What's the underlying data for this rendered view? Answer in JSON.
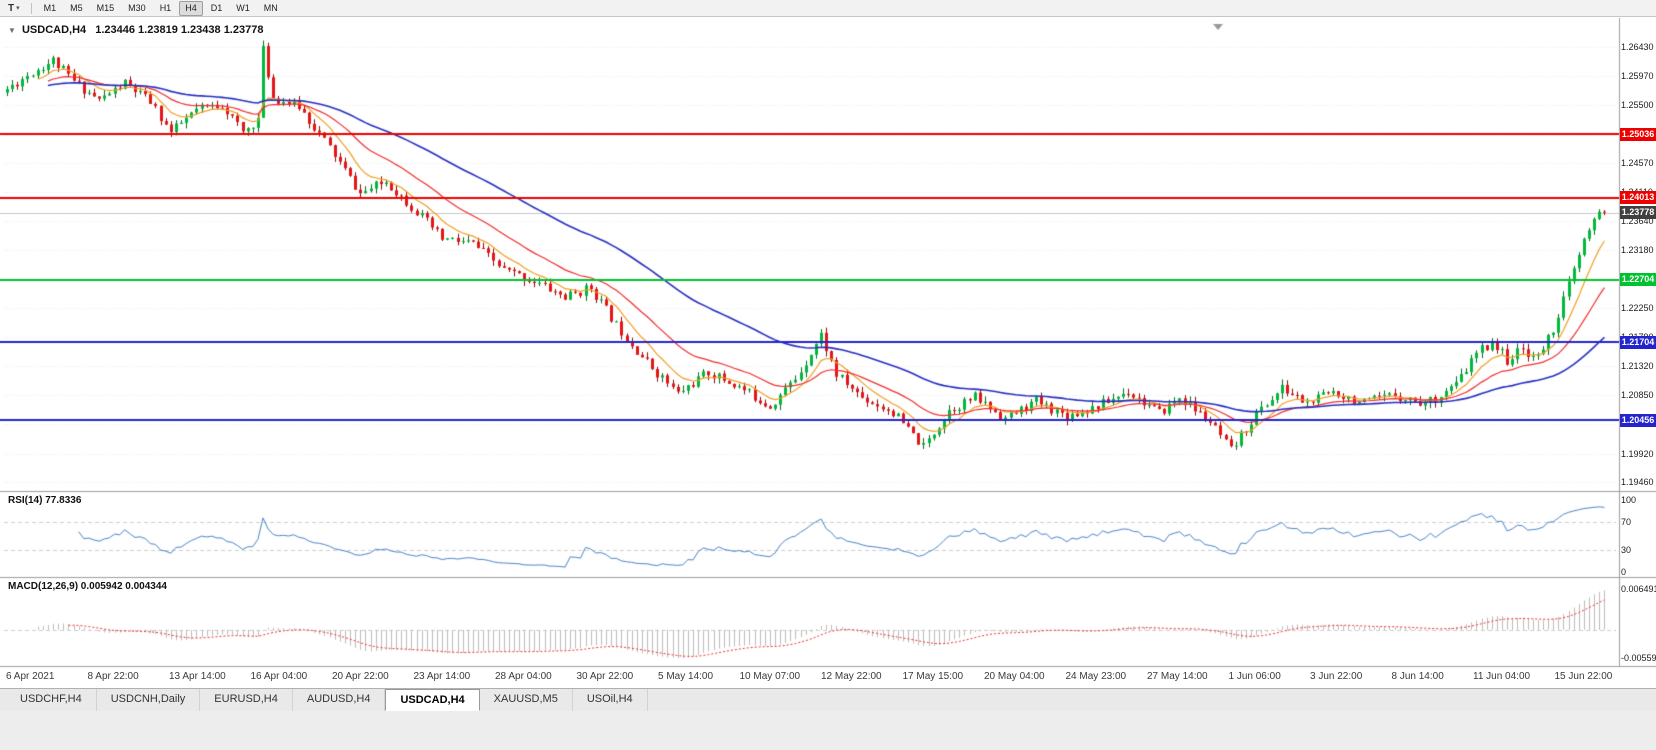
{
  "toolbar": {
    "template_button": "T",
    "caret_icon": "▾",
    "timeframes": [
      "M1",
      "M5",
      "M15",
      "M30",
      "H1",
      "H4",
      "D1",
      "W1",
      "MN"
    ],
    "active_timeframe": "H4"
  },
  "title": {
    "collapse_icon": "▼",
    "symbol": "USDCAD,H4",
    "ohlc": "1.23446 1.23819 1.23438 1.23778"
  },
  "rsi_panel": {
    "label": "RSI(14) 77.8336",
    "value": 77.8336,
    "scale": [
      "100",
      "70",
      "30",
      "0"
    ]
  },
  "macd_panel": {
    "label": "MACD(12,26,9) 0.005942 0.004344",
    "macd_value": 0.005942,
    "signal_value": 0.004344,
    "scale_top": "0.006491",
    "scale_bottom": "-0.005593"
  },
  "tabs": {
    "items": [
      "USDCHF,H4",
      "USDCNH,Daily",
      "EURUSD,H4",
      "AUDUSD,H4",
      "USDCAD,H4",
      "XAUUSD,M5",
      "USOil,H4"
    ],
    "active": "USDCAD,H4"
  },
  "colors": {
    "up_candle": "#00b93c",
    "up_wick": "#0c6b22",
    "down_candle": "#e51515",
    "down_wick": "#8f0d0d",
    "ma_fast": "#f0a028",
    "ma_mid": "#f03030",
    "ma_slow": "#2830c0",
    "rsi_line": "#4a86c8",
    "macd_hist": "#bdbdbd",
    "macd_signal": "#f03030",
    "current_price_tag": "#3f3f3f",
    "resistance_line": "#ee0000",
    "support_green": "#00c22e",
    "support_blue": "#2424cc"
  },
  "chart_data": {
    "type": "candlestick",
    "symbol": "USDCAD",
    "timeframe": "H4",
    "current_price": 1.23778,
    "current_price_label": "1.23778",
    "ohlc_current": {
      "open": 1.23446,
      "high": 1.23819,
      "low": 1.23438,
      "close": 1.23778
    },
    "price_range": {
      "max": 1.268,
      "min": 1.194
    },
    "candle_count": 313,
    "price_ticks": [
      "1.26430",
      "1.25970",
      "1.25500",
      "1.25030",
      "1.24570",
      "1.24110",
      "1.23640",
      "1.23180",
      "1.22710",
      "1.22250",
      "1.21790",
      "1.21320",
      "1.20850",
      "1.20390",
      "1.19920",
      "1.19460"
    ],
    "x_labels": [
      "6 Apr 2021",
      "8 Apr 22:00",
      "13 Apr 14:00",
      "16 Apr 04:00",
      "20 Apr 22:00",
      "23 Apr 14:00",
      "28 Apr 04:00",
      "30 Apr 22:00",
      "5 May 14:00",
      "10 May 07:00",
      "12 May 22:00",
      "17 May 15:00",
      "20 May 04:00",
      "24 May 23:00",
      "27 May 14:00",
      "1 Jun 06:00",
      "3 Jun 22:00",
      "8 Jun 14:00",
      "11 Jun 04:00",
      "15 Jun 22:00"
    ],
    "hlines": [
      {
        "price": 1.25036,
        "label": "1.25036",
        "color": "#ee0000"
      },
      {
        "price": 1.24013,
        "label": "1.24013",
        "color": "#ee0000"
      },
      {
        "price": 1.22704,
        "label": "1.22704",
        "color": "#00c22e"
      },
      {
        "price": 1.21704,
        "label": "1.21704",
        "color": "#2424cc"
      },
      {
        "price": 1.20456,
        "label": "1.20456",
        "color": "#2424cc"
      }
    ],
    "anchors": [
      [
        0,
        1.257
      ],
      [
        5,
        1.2598
      ],
      [
        10,
        1.2622
      ],
      [
        14,
        1.2588
      ],
      [
        19,
        1.2558
      ],
      [
        24,
        1.2585
      ],
      [
        29,
        1.2555
      ],
      [
        33,
        1.2506
      ],
      [
        38,
        1.2542
      ],
      [
        43,
        1.2552
      ],
      [
        47,
        1.2506
      ],
      [
        50,
        1.2528
      ],
      [
        51,
        1.2638
      ],
      [
        53,
        1.2562
      ],
      [
        58,
        1.2548
      ],
      [
        64,
        1.2482
      ],
      [
        70,
        1.2408
      ],
      [
        75,
        1.2428
      ],
      [
        80,
        1.2388
      ],
      [
        86,
        1.2336
      ],
      [
        92,
        1.2328
      ],
      [
        98,
        1.2286
      ],
      [
        104,
        1.2268
      ],
      [
        110,
        1.2242
      ],
      [
        115,
        1.2258
      ],
      [
        120,
        1.2198
      ],
      [
        126,
        1.2138
      ],
      [
        132,
        1.2088
      ],
      [
        138,
        1.2122
      ],
      [
        144,
        1.2098
      ],
      [
        150,
        1.2068
      ],
      [
        155,
        1.2112
      ],
      [
        160,
        1.2182
      ],
      [
        163,
        1.2118
      ],
      [
        168,
        1.2082
      ],
      [
        174,
        1.2058
      ],
      [
        180,
        1.2002
      ],
      [
        185,
        1.2062
      ],
      [
        190,
        1.2082
      ],
      [
        196,
        1.2048
      ],
      [
        202,
        1.2076
      ],
      [
        208,
        1.2052
      ],
      [
        214,
        1.2068
      ],
      [
        220,
        1.2092
      ],
      [
        226,
        1.2056
      ],
      [
        230,
        1.2082
      ],
      [
        236,
        1.2042
      ],
      [
        240,
        1.1996
      ],
      [
        245,
        1.2056
      ],
      [
        250,
        1.2096
      ],
      [
        255,
        1.2072
      ],
      [
        260,
        1.2092
      ],
      [
        266,
        1.2072
      ],
      [
        272,
        1.2086
      ],
      [
        278,
        1.2072
      ],
      [
        284,
        1.2102
      ],
      [
        288,
        1.2152
      ],
      [
        291,
        1.2172
      ],
      [
        294,
        1.2142
      ],
      [
        297,
        1.2158
      ],
      [
        300,
        1.2146
      ],
      [
        303,
        1.2192
      ],
      [
        306,
        1.2262
      ],
      [
        309,
        1.2332
      ],
      [
        312,
        1.23778
      ]
    ]
  }
}
